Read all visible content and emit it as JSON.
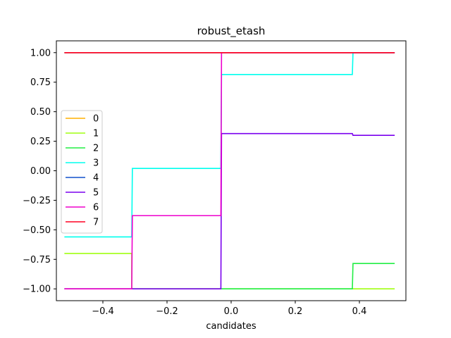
{
  "chart_data": {
    "type": "line",
    "title": "robust_etash",
    "xlabel": "candidates",
    "ylabel": "",
    "xlim": [
      -0.545,
      0.545
    ],
    "ylim": [
      -1.1,
      1.1
    ],
    "xticks": [
      -0.4,
      -0.2,
      0.0,
      0.2,
      0.4
    ],
    "xtick_labels": [
      "−0.4",
      "−0.2",
      "0.0",
      "0.2",
      "0.4"
    ],
    "yticks": [
      -1.0,
      -0.75,
      -0.5,
      -0.25,
      0.0,
      0.25,
      0.5,
      0.75,
      1.0
    ],
    "ytick_labels": [
      "−1.00",
      "−0.75",
      "−0.50",
      "−0.25",
      "0.00",
      "0.25",
      "0.50",
      "0.75",
      "1.00"
    ],
    "grid": false,
    "legend": "center-left",
    "series": [
      {
        "name": "0",
        "color": "#ffb000",
        "x": [
          -0.52,
          0.51
        ],
        "y": [
          1.0,
          1.0
        ]
      },
      {
        "name": "1",
        "color": "#a0ff10",
        "x": [
          -0.52,
          -0.31,
          -0.31,
          0.51
        ],
        "y": [
          -0.7,
          -0.7,
          -1.0,
          -1.0
        ]
      },
      {
        "name": "2",
        "color": "#22ee44",
        "x": [
          -0.52,
          0.378,
          0.38,
          0.51
        ],
        "y": [
          -1.0,
          -1.0,
          -0.785,
          -0.785
        ]
      },
      {
        "name": "3",
        "color": "#00ffee",
        "x": [
          -0.52,
          -0.31,
          -0.308,
          -0.032,
          -0.03,
          0.378,
          0.38,
          0.51
        ],
        "y": [
          -0.56,
          -0.56,
          0.02,
          0.02,
          0.815,
          0.815,
          1.0,
          1.0
        ]
      },
      {
        "name": "4",
        "color": "#1050cc",
        "x": [
          -0.52,
          0.51
        ],
        "y": [
          1.0,
          1.0
        ]
      },
      {
        "name": "5",
        "color": "#7a00ee",
        "x": [
          -0.52,
          -0.032,
          -0.03,
          0.378,
          0.38,
          0.51
        ],
        "y": [
          -1.0,
          -1.0,
          0.315,
          0.315,
          0.3,
          0.3
        ]
      },
      {
        "name": "6",
        "color": "#ee00cc",
        "x": [
          -0.52,
          -0.31,
          -0.308,
          -0.032,
          -0.03,
          0.51
        ],
        "y": [
          -1.0,
          -1.0,
          -0.38,
          -0.38,
          1.0,
          1.0
        ]
      },
      {
        "name": "7",
        "color": "#ff0022",
        "x": [
          -0.52,
          0.51
        ],
        "y": [
          1.0,
          1.0
        ]
      }
    ]
  }
}
